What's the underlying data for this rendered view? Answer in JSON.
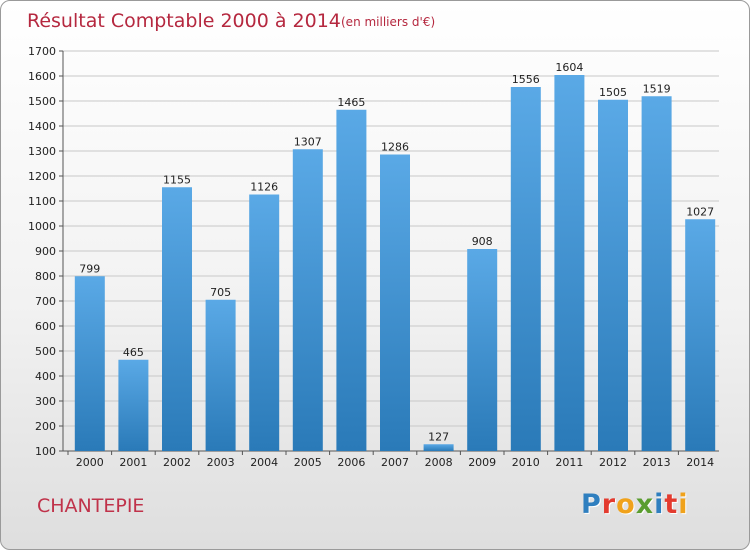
{
  "commune": "CHANTEPIE",
  "brand": {
    "text": "Proxiti",
    "letter_colors": [
      "#2f7fbf",
      "#e33b2f",
      "#f0a21b",
      "#5a9d2f",
      "#2f7fbf",
      "#e33b2f",
      "#f0a21b"
    ]
  },
  "colors": {
    "bar_top": "#5aa9e6",
    "bar_bottom": "#2a7ab8",
    "title": "#b5283f"
  },
  "chart_data": {
    "type": "bar",
    "title": "Résultat Comptable 2000 à 2014",
    "subtitle": "(en milliers d'€)",
    "categories": [
      "2000",
      "2001",
      "2002",
      "2003",
      "2004",
      "2005",
      "2006",
      "2007",
      "2008",
      "2009",
      "2010",
      "2011",
      "2012",
      "2013",
      "2014"
    ],
    "values": [
      799,
      465,
      1155,
      705,
      1126,
      1307,
      1465,
      1286,
      127,
      908,
      1556,
      1604,
      1505,
      1519,
      1027
    ],
    "ylim": [
      100,
      1700
    ],
    "yticks": [
      100,
      200,
      300,
      400,
      500,
      600,
      700,
      800,
      900,
      1000,
      1100,
      1200,
      1300,
      1400,
      1500,
      1600,
      1700
    ],
    "grid": true,
    "xlabel": "",
    "ylabel": ""
  }
}
